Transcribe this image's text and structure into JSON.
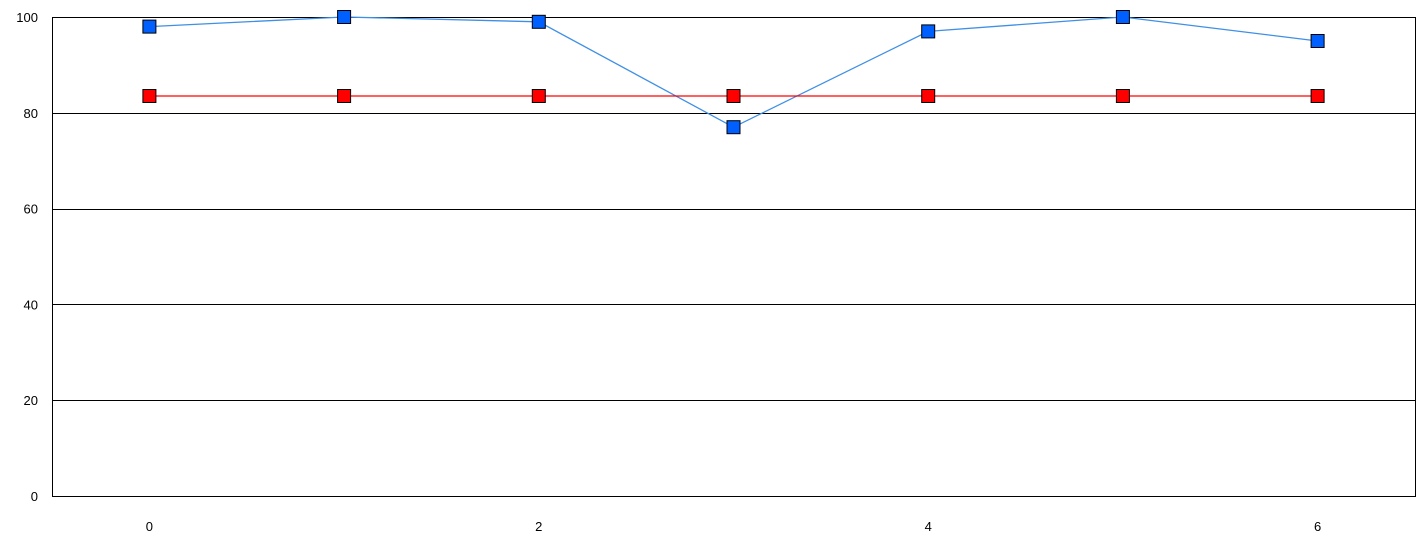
{
  "chart_data": {
    "type": "line",
    "title": "",
    "xlabel": "",
    "ylabel": "",
    "x": [
      0,
      1,
      2,
      3,
      4,
      5,
      6
    ],
    "xlim": [
      -0.5,
      6.5
    ],
    "ylim": [
      0,
      100
    ],
    "x_ticks": [
      0,
      2,
      4,
      6
    ],
    "y_ticks": [
      0,
      20,
      40,
      60,
      80,
      100
    ],
    "x_tick_labels": [
      "0",
      "2",
      "4",
      "6"
    ],
    "y_tick_labels": [
      "0",
      "20",
      "40",
      "60",
      "80",
      "100"
    ],
    "grid": {
      "horizontal": true,
      "vertical": false,
      "color": "#000000"
    },
    "legend": "none",
    "series": [
      {
        "values": [
          98,
          100,
          99,
          77,
          97,
          100,
          95
        ],
        "color": "#3f8fe6",
        "marker_color": "#0060ff",
        "marker": "square"
      },
      {
        "values": [
          83.5,
          83.5,
          83.5,
          83.5,
          83.5,
          83.5,
          83.5
        ],
        "color": "#ff0000",
        "marker_color": "#ff0000",
        "marker": "square"
      }
    ]
  }
}
